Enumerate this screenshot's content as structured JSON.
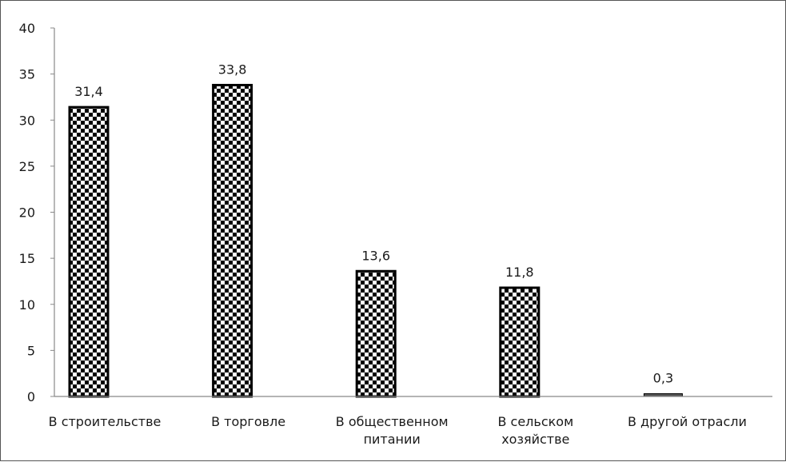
{
  "chart_data": {
    "type": "bar",
    "categories": [
      [
        "В строительстве"
      ],
      [
        "В торговле"
      ],
      [
        "В общественном",
        "питании"
      ],
      [
        "В сельском",
        "хозяйстве"
      ],
      [
        "В другой отрасли"
      ]
    ],
    "values": [
      31.4,
      33.8,
      13.6,
      11.8,
      0.3
    ],
    "value_labels": [
      "31,4",
      "33,8",
      "13,6",
      "11,8",
      "0,3"
    ],
    "ylim": [
      0,
      40
    ],
    "yticks": [
      0,
      5,
      10,
      15,
      20,
      25,
      30,
      35,
      40
    ],
    "grid": false,
    "legend": false,
    "bar_pattern": "checkerboard",
    "colors": {
      "bar_fill": "#000000",
      "bar_pattern_light": "#ffffff",
      "axis": "#888888",
      "text": "#1a1a1a"
    }
  }
}
